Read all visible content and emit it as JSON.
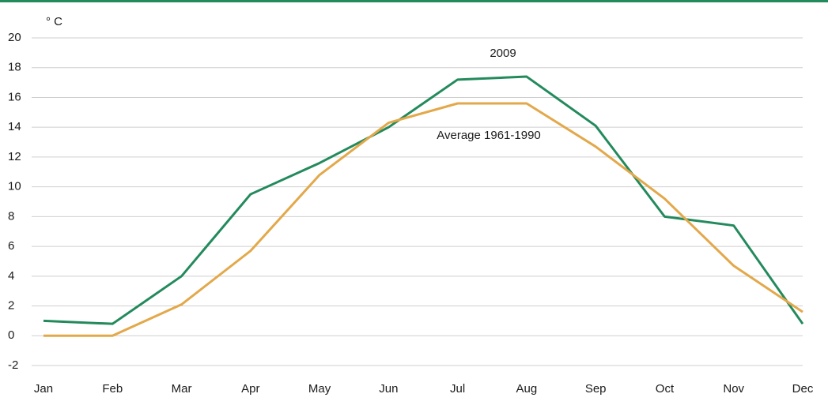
{
  "chart_data": {
    "type": "line",
    "y_label": "° C",
    "categories": [
      "Jan",
      "Feb",
      "Mar",
      "Apr",
      "May",
      "Jun",
      "Jul",
      "Aug",
      "Sep",
      "Oct",
      "Nov",
      "Dec"
    ],
    "series": [
      {
        "name": "2009",
        "color": "#238a5c",
        "values": [
          1.0,
          0.8,
          4.0,
          9.5,
          11.6,
          14.0,
          17.2,
          17.4,
          14.1,
          8.0,
          7.4,
          0.8
        ]
      },
      {
        "name": "Average 1961-1990",
        "color": "#e3a84a",
        "values": [
          0,
          0,
          2.1,
          5.7,
          10.8,
          14.3,
          15.6,
          15.6,
          12.7,
          9.2,
          4.7,
          1.6
        ]
      }
    ],
    "ylim": [
      -2,
      20
    ],
    "yticks": [
      -2,
      0,
      2,
      4,
      6,
      8,
      10,
      12,
      14,
      16,
      18,
      20
    ],
    "grid": true
  }
}
